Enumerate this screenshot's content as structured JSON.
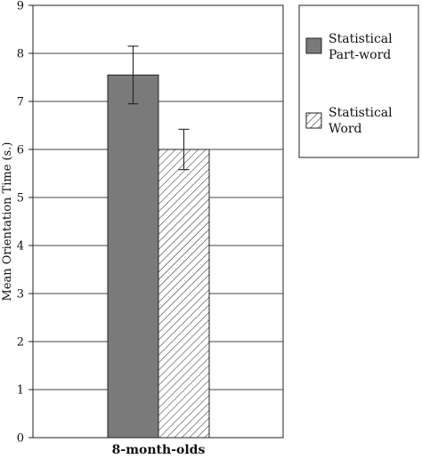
{
  "chart_data": {
    "type": "bar",
    "categories": [
      "8-month-olds"
    ],
    "series": [
      {
        "name": "Statistical Part-word",
        "values": [
          7.55
        ],
        "error": [
          0.6
        ],
        "color": "#7a7a7a",
        "pattern": "solid"
      },
      {
        "name": "Statistical Word",
        "values": [
          6.0
        ],
        "error": [
          0.42
        ],
        "color": "#ffffff",
        "pattern": "diagonal-hatch"
      }
    ],
    "title": "",
    "xlabel": "",
    "ylabel": "Mean Orientation Time (s.)",
    "ylim": [
      0,
      9
    ],
    "yticks": [
      0,
      1,
      2,
      3,
      4,
      5,
      6,
      7,
      8,
      9
    ],
    "grid": true,
    "legend": [
      "Statistical Part-word",
      "Statistical Word"
    ],
    "legend_lines": [
      [
        "Statistical",
        "Part-word"
      ],
      [
        "Statistical",
        "Word"
      ]
    ],
    "legend_position": "top-right"
  }
}
